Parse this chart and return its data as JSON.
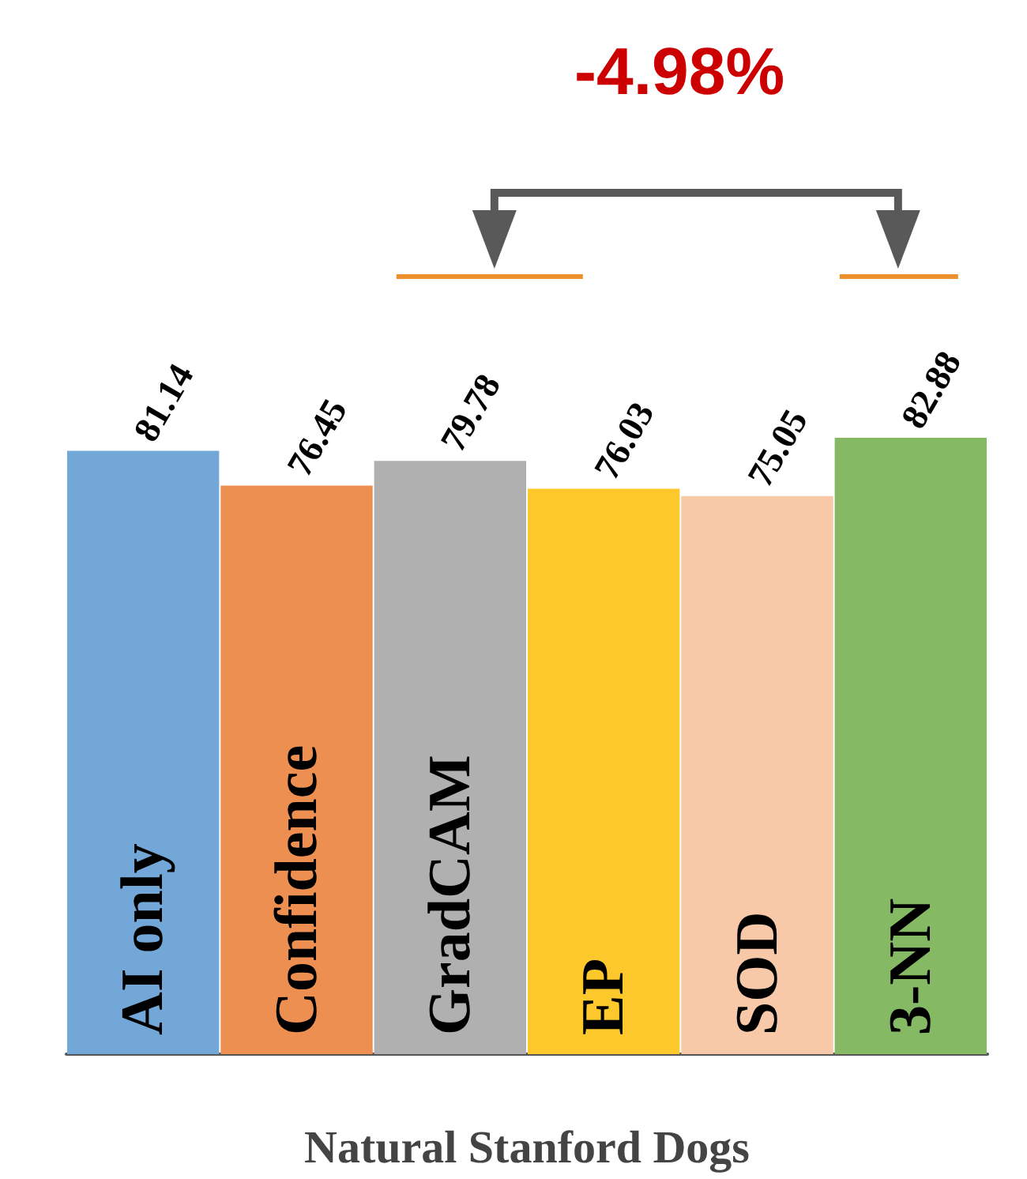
{
  "chart_data": {
    "type": "bar",
    "xlabel": "Natural Stanford Dogs",
    "categories": [
      "AI only",
      "Confidence",
      "GradCAM",
      "EP",
      "SOD",
      "3-NN"
    ],
    "values": [
      81.14,
      76.45,
      79.78,
      76.03,
      75.05,
      82.88
    ],
    "colors": [
      "#72a7d8",
      "#ee8f52",
      "#b0b0b0",
      "#fdc82c",
      "#f7c9a8",
      "#86b964"
    ],
    "data_labels": true,
    "annotations": [
      "-4.98%"
    ]
  }
}
